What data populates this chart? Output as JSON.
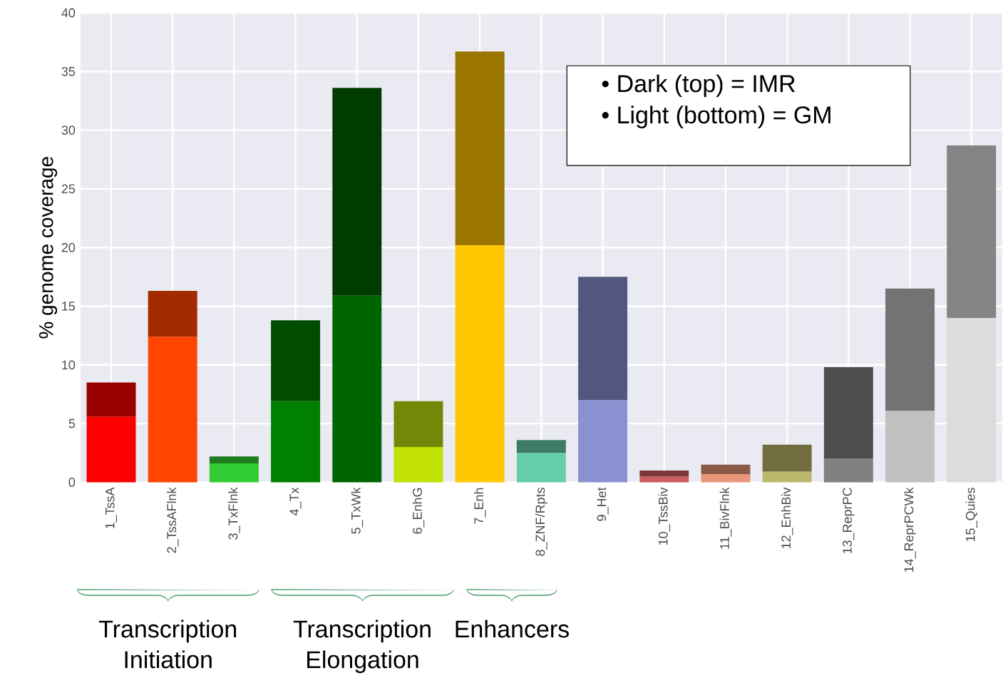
{
  "chart_data": {
    "type": "bar",
    "ylabel": "% genome coverage",
    "stacked": true,
    "grid": true,
    "categories": [
      "1_TssA",
      "2_TssAFlnk",
      "3_TxFlnk",
      "4_Tx",
      "5_TxWk",
      "6_EnhG",
      "7_Enh",
      "8_ZNF/Rpts",
      "9_Het",
      "10_TssBiv",
      "11_BivFlnk",
      "12_EnhBiv",
      "13_ReprPC",
      "14_ReprPCWk",
      "15_Quies"
    ],
    "series": [
      {
        "values": [
          5.6,
          12.4,
          1.6,
          6.9,
          15.9,
          3.0,
          20.2,
          2.5,
          7.0,
          0.5,
          0.7,
          0.9,
          2.0,
          6.1,
          14.0
        ],
        "colors": [
          "#ff0000",
          "#ff4500",
          "#32cd32",
          "#008000",
          "#006400",
          "#c2e105",
          "#ffc800",
          "#66cdaa",
          "#8a91d0",
          "#cd5c5c",
          "#e9967a",
          "#bdb76b",
          "#808080",
          "#c0c0c0",
          "#dcdcdc"
        ]
      },
      {
        "values": [
          2.9,
          3.9,
          0.6,
          6.9,
          17.7,
          3.9,
          16.5,
          1.1,
          10.5,
          0.5,
          0.8,
          2.3,
          7.8,
          10.4,
          14.7
        ],
        "colors": [
          "#990000",
          "#a32b00",
          "#1e7b1e",
          "#004d00",
          "#003c00",
          "#748707",
          "#9a7500",
          "#3d7b66",
          "#53577d",
          "#7b3737",
          "#8c5a49",
          "#716d40",
          "#4d4d4d",
          "#737373",
          "#848484"
        ]
      }
    ],
    "ylim": [
      0,
      40
    ],
    "yticks": [
      0,
      5,
      10,
      15,
      20,
      25,
      30,
      35,
      40
    ],
    "annotations": [
      "Transcription Initiation",
      "Transcription Elongation",
      "Enhancers",
      "• Dark (top) = IMR",
      "• Light (bottom) = GM"
    ]
  }
}
